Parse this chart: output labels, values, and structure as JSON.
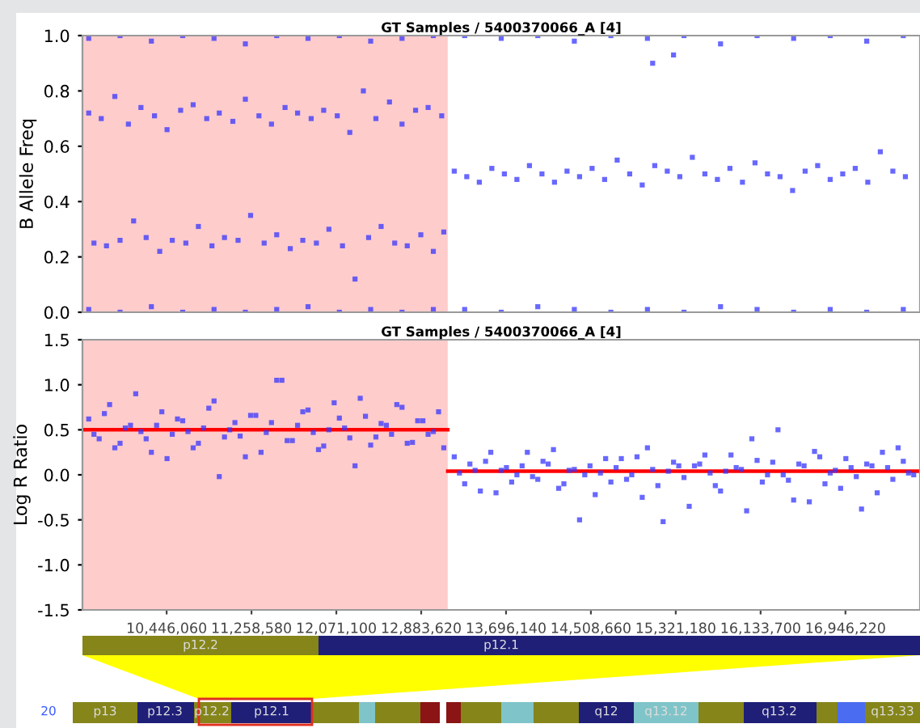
{
  "chart_data": [
    {
      "type": "scatter",
      "title": "GT Samples / 5400370066_A [4]",
      "ylabel": "B Allele Freq",
      "xlim": [
        9640000,
        17660000
      ],
      "ylim": [
        0,
        1
      ],
      "yticks": [
        {
          "value": 0,
          "label": "0.0"
        },
        0.2,
        0.4,
        0.6,
        0.8,
        {
          "value": 1,
          "label": "1.0"
        }
      ],
      "tick_labels": "y",
      "grid": false,
      "marker": "square",
      "bands": [
        {
          "axis": "x",
          "from": 9640000,
          "to": 13138000,
          "color": "#ffcccc"
        }
      ],
      "series": [
        {
          "color": "#3535ff",
          "x": [
            9700000,
            9820000,
            9950000,
            10080000,
            10200000,
            10330000,
            10450000,
            10580000,
            10700000,
            10830000,
            10950000,
            11080000,
            11200000,
            11330000,
            11450000,
            11580000,
            11700000,
            11830000,
            11950000,
            12080000,
            12200000,
            12330000,
            12450000,
            12580000,
            12700000,
            12830000,
            12950000,
            13080000
          ],
          "values": [
            0.72,
            0.7,
            0.78,
            0.68,
            0.74,
            0.71,
            0.66,
            0.73,
            0.75,
            0.7,
            0.72,
            0.69,
            0.77,
            0.71,
            0.68,
            0.74,
            0.72,
            0.7,
            0.73,
            0.71,
            0.65,
            0.8,
            0.7,
            0.76,
            0.68,
            0.73,
            0.74,
            0.71
          ]
        },
        {
          "color": "#3535ff",
          "x": [
            9750000,
            9870000,
            10000000,
            10130000,
            10250000,
            10380000,
            10500000,
            10630000,
            10750000,
            10880000,
            11000000,
            11130000,
            11250000,
            11380000,
            11500000,
            11630000,
            11750000,
            11880000,
            12000000,
            12130000,
            12250000,
            12380000,
            12500000,
            12630000,
            12750000,
            12880000,
            13000000,
            13100000
          ],
          "values": [
            0.25,
            0.24,
            0.26,
            0.33,
            0.27,
            0.22,
            0.26,
            0.25,
            0.31,
            0.24,
            0.27,
            0.26,
            0.35,
            0.25,
            0.28,
            0.23,
            0.26,
            0.25,
            0.3,
            0.24,
            0.12,
            0.27,
            0.31,
            0.25,
            0.24,
            0.28,
            0.22,
            0.29
          ]
        },
        {
          "color": "#3535ff",
          "x": [
            9700000,
            10000000,
            10300000,
            10600000,
            10900000,
            11200000,
            11500000,
            11800000,
            12100000,
            12400000,
            12700000,
            13000000
          ],
          "values": [
            0.01,
            0.0,
            0.02,
            0.0,
            0.01,
            0.0,
            0.01,
            0.02,
            0.0,
            0.01,
            0.0,
            0.01
          ]
        },
        {
          "color": "#3535ff",
          "x": [
            9700000,
            10000000,
            10300000,
            10600000,
            10900000,
            11200000,
            11500000,
            11800000,
            12100000,
            12400000,
            12700000,
            13000000
          ],
          "values": [
            0.99,
            1.0,
            0.98,
            1.0,
            0.99,
            0.97,
            1.0,
            0.99,
            1.0,
            0.98,
            0.99,
            1.0
          ]
        },
        {
          "color": "#3535ff",
          "x": [
            13200000,
            13320000,
            13440000,
            13560000,
            13680000,
            13800000,
            13920000,
            14040000,
            14160000,
            14280000,
            14400000,
            14520000,
            14640000,
            14760000,
            14880000,
            15000000,
            15120000,
            15240000,
            15360000,
            15480000,
            15600000,
            15720000,
            15840000,
            15960000,
            16080000,
            16200000,
            16320000,
            16440000,
            16560000,
            16680000,
            16800000,
            16920000,
            17040000,
            17160000,
            17280000,
            17400000,
            17520000,
            15100000,
            15300000
          ],
          "values": [
            0.51,
            0.49,
            0.47,
            0.52,
            0.5,
            0.48,
            0.53,
            0.5,
            0.47,
            0.51,
            0.49,
            0.52,
            0.48,
            0.55,
            0.5,
            0.46,
            0.53,
            0.51,
            0.49,
            0.56,
            0.5,
            0.48,
            0.52,
            0.47,
            0.54,
            0.5,
            0.49,
            0.44,
            0.51,
            0.53,
            0.48,
            0.5,
            0.52,
            0.47,
            0.58,
            0.51,
            0.49,
            0.9,
            0.93
          ]
        },
        {
          "color": "#3535ff",
          "x": [
            13300000,
            13650000,
            14000000,
            14350000,
            14700000,
            15050000,
            15400000,
            15750000,
            16100000,
            16450000,
            16800000,
            17150000,
            17500000
          ],
          "values": [
            0.01,
            0.0,
            0.02,
            0.01,
            0.0,
            0.01,
            0.0,
            0.02,
            0.01,
            0.0,
            0.01,
            0.0,
            0.01
          ]
        },
        {
          "color": "#3535ff",
          "x": [
            13300000,
            13650000,
            14000000,
            14350000,
            14700000,
            15050000,
            15400000,
            15750000,
            16100000,
            16450000,
            16800000,
            17150000,
            17500000
          ],
          "values": [
            1.0,
            0.99,
            1.0,
            0.98,
            1.0,
            0.99,
            1.0,
            0.97,
            1.0,
            0.99,
            1.0,
            0.98,
            1.0
          ]
        }
      ]
    },
    {
      "type": "scatter",
      "title": "GT Samples / 5400370066_A [4]",
      "ylabel": "Log R Ratio",
      "xlim": [
        9640000,
        17660000
      ],
      "ylim": [
        -1.5,
        1.5
      ],
      "yticks": [
        {
          "value": -1.5,
          "label": "-1.5"
        },
        {
          "value": -1.0,
          "label": "-1.0"
        },
        {
          "value": -0.5,
          "label": "-0.5"
        },
        {
          "value": 0.0,
          "label": "0.0"
        },
        {
          "value": 0.5,
          "label": "0.5"
        },
        {
          "value": 1.0,
          "label": "1.0"
        },
        {
          "value": 1.5,
          "label": "1.5"
        }
      ],
      "xticks": [
        {
          "value": 10446060,
          "label": "10,446,060"
        },
        {
          "value": 11258580,
          "label": "11,258,580"
        },
        {
          "value": 12071100,
          "label": "12,071,100"
        },
        {
          "value": 12883620,
          "label": "12,883,620"
        },
        {
          "value": 13696140,
          "label": "13,696,140"
        },
        {
          "value": 14508660,
          "label": "14,508,660"
        },
        {
          "value": 15321180,
          "label": "15,321,180"
        },
        {
          "value": 16133700,
          "label": "16,133,700"
        },
        {
          "value": 16946220,
          "label": "16,946,220"
        }
      ],
      "grid": false,
      "marker": "square",
      "bands": [
        {
          "axis": "x",
          "from": 9640000,
          "to": 13138000,
          "color": "#ffcccc"
        }
      ],
      "annotations": [
        "p12.2",
        "p12.1",
        "20",
        "p13",
        "p12.3",
        "p12.2",
        "p12.1",
        "q12",
        "q13.12",
        "q13.2",
        "q13.33"
      ],
      "series": [
        {
          "color": "#3535ff",
          "x": [
            9700000,
            9800000,
            9900000,
            10000000,
            10100000,
            10200000,
            10300000,
            10400000,
            10500000,
            10600000,
            10700000,
            10800000,
            10900000,
            11000000,
            11100000,
            11200000,
            11300000,
            11400000,
            11500000,
            11600000,
            11700000,
            11800000,
            11900000,
            12000000,
            12100000,
            12200000,
            12300000,
            12400000,
            12500000,
            12600000,
            12700000,
            12800000,
            12900000,
            13000000,
            13100000
          ],
          "values": [
            0.62,
            0.4,
            0.78,
            0.35,
            0.55,
            0.48,
            0.25,
            0.7,
            0.45,
            0.6,
            0.3,
            0.52,
            0.82,
            0.42,
            0.58,
            0.2,
            0.66,
            0.47,
            1.05,
            0.38,
            0.55,
            0.72,
            0.28,
            0.5,
            0.63,
            0.41,
            0.85,
            0.33,
            0.57,
            0.45,
            0.75,
            0.36,
            0.6,
            0.48,
            0.3
          ]
        },
        {
          "color": "#3535ff",
          "x": [
            9750000,
            9850000,
            9950000,
            10050000,
            10150000,
            10250000,
            10350000,
            10450000,
            10550000,
            10650000,
            10750000,
            10850000,
            10950000,
            11050000,
            11150000,
            11250000,
            11350000,
            11450000,
            11550000,
            11650000,
            11750000,
            11850000,
            11950000,
            12050000,
            12150000,
            12250000,
            12350000,
            12450000,
            12550000,
            12650000,
            12750000,
            12850000,
            12950000,
            13050000
          ],
          "values": [
            0.45,
            0.68,
            0.3,
            0.52,
            0.9,
            0.4,
            0.55,
            0.18,
            0.62,
            0.48,
            0.35,
            0.74,
            -0.02,
            0.5,
            0.43,
            0.66,
            0.25,
            0.58,
            1.05,
            0.38,
            0.7,
            0.47,
            0.32,
            0.8,
            0.52,
            0.1,
            0.65,
            0.42,
            0.55,
            0.78,
            0.35,
            0.6,
            0.45,
            0.7
          ]
        },
        {
          "color": "#3535ff",
          "x": [
            13200000,
            13300000,
            13400000,
            13500000,
            13600000,
            13700000,
            13800000,
            13900000,
            14000000,
            14100000,
            14200000,
            14300000,
            14400000,
            14500000,
            14600000,
            14700000,
            14800000,
            14900000,
            15000000,
            15100000,
            15200000,
            15300000,
            15400000,
            15500000,
            15600000,
            15700000,
            15800000,
            15900000,
            16000000,
            16100000,
            16200000,
            16300000,
            16400000,
            16500000,
            16600000,
            16700000,
            16800000,
            16900000,
            17000000,
            17100000,
            17200000,
            17300000,
            17400000,
            17500000,
            17600000
          ],
          "values": [
            0.2,
            -0.1,
            0.05,
            0.15,
            -0.2,
            0.08,
            0.0,
            0.25,
            -0.05,
            0.12,
            -0.15,
            0.05,
            -0.5,
            0.1,
            0.02,
            -0.08,
            0.18,
            0.0,
            -0.25,
            0.06,
            -0.52,
            0.14,
            -0.03,
            0.1,
            0.22,
            -0.12,
            0.04,
            0.08,
            -0.4,
            0.16,
            0.0,
            0.5,
            -0.06,
            0.12,
            -0.3,
            0.2,
            0.02,
            -0.15,
            0.08,
            -0.38,
            0.1,
            0.25,
            -0.05,
            0.15,
            0.0
          ]
        },
        {
          "color": "#3535ff",
          "x": [
            13250000,
            13350000,
            13450000,
            13550000,
            13650000,
            13750000,
            13850000,
            13950000,
            14050000,
            14150000,
            14250000,
            14350000,
            14450000,
            14550000,
            14650000,
            14750000,
            14850000,
            14950000,
            15050000,
            15150000,
            15250000,
            15350000,
            15450000,
            15550000,
            15650000,
            15750000,
            15850000,
            15950000,
            16050000,
            16150000,
            16250000,
            16350000,
            16450000,
            16550000,
            16650000,
            16750000,
            16850000,
            16950000,
            17050000,
            17150000,
            17250000,
            17350000,
            17450000,
            17550000
          ],
          "values": [
            0.02,
            0.12,
            -0.18,
            0.25,
            0.05,
            -0.08,
            0.1,
            -0.02,
            0.15,
            0.28,
            -0.1,
            0.06,
            0.0,
            -0.22,
            0.18,
            0.08,
            -0.05,
            0.2,
            0.3,
            -0.12,
            0.04,
            0.1,
            -0.35,
            0.12,
            0.02,
            -0.18,
            0.22,
            0.06,
            0.4,
            -0.08,
            0.14,
            0.0,
            -0.28,
            0.1,
            0.26,
            -0.1,
            0.05,
            0.18,
            -0.02,
            0.12,
            -0.2,
            0.08,
            0.3,
            0.02
          ]
        },
        {
          "type": "line",
          "marker": "none",
          "color": "#ff0000",
          "x": [
            9640000,
            13138000
          ],
          "values": [
            0.5,
            0.5
          ]
        },
        {
          "type": "line",
          "marker": "none",
          "color": "#ff0000",
          "x": [
            13138000,
            17660000
          ],
          "values": [
            0.04,
            0.04
          ]
        }
      ]
    }
  ]
}
